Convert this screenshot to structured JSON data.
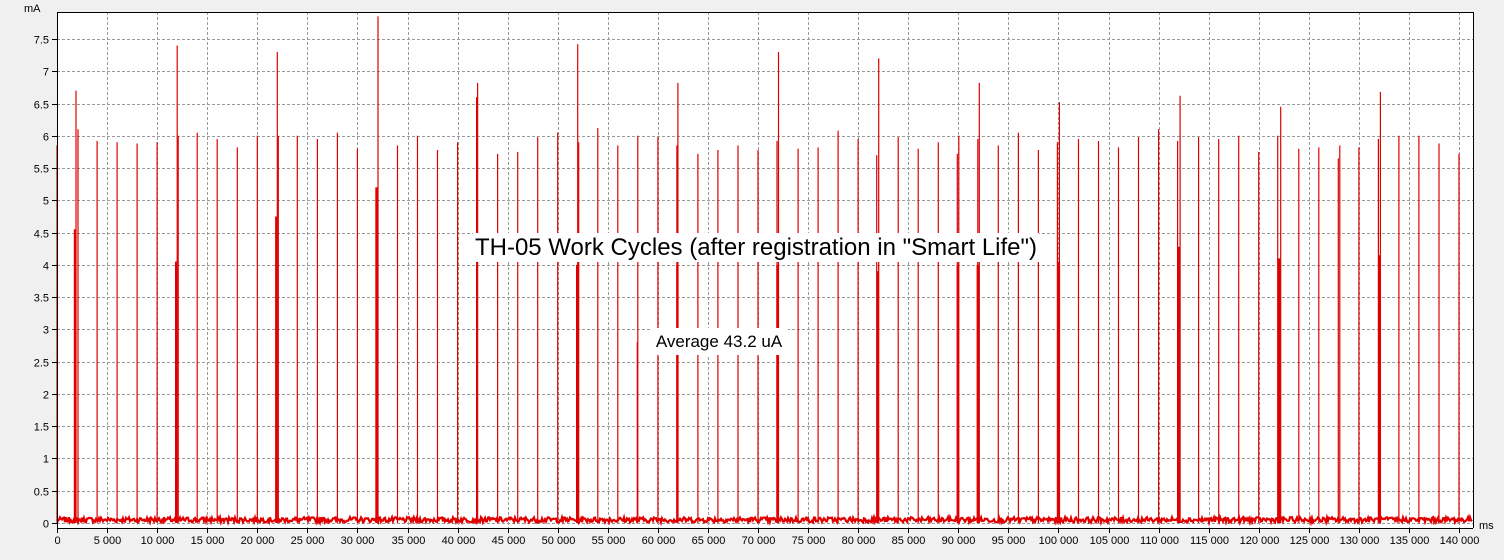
{
  "chart_data": {
    "type": "line",
    "title": "TH-05 Work Cycles (after registration in \"Smart Life\")",
    "annotation": "Average 43.2 uA",
    "xlabel": "ms",
    "ylabel": "mA",
    "xlim": [
      0,
      141000
    ],
    "ylim": [
      -0.05,
      7.85
    ],
    "grid": true,
    "line_color": "#e00000",
    "plot_background": "#ffffff",
    "x_ticks": [
      {
        "value": 0,
        "label": "0"
      },
      {
        "value": 5000,
        "label": "5 000"
      },
      {
        "value": 10000,
        "label": "10 000"
      },
      {
        "value": 15000,
        "label": "15 000"
      },
      {
        "value": 20000,
        "label": "20 000"
      },
      {
        "value": 25000,
        "label": "25 000"
      },
      {
        "value": 30000,
        "label": "30 000"
      },
      {
        "value": 35000,
        "label": "35 000"
      },
      {
        "value": 40000,
        "label": "40 000"
      },
      {
        "value": 45000,
        "label": "45 000"
      },
      {
        "value": 50000,
        "label": "50 000"
      },
      {
        "value": 55000,
        "label": "55 000"
      },
      {
        "value": 60000,
        "label": "60 000"
      },
      {
        "value": 65000,
        "label": "65 000"
      },
      {
        "value": 70000,
        "label": "70 000"
      },
      {
        "value": 75000,
        "label": "75 000"
      },
      {
        "value": 80000,
        "label": "80 000"
      },
      {
        "value": 85000,
        "label": "85 000"
      },
      {
        "value": 90000,
        "label": "90 000"
      },
      {
        "value": 95000,
        "label": "95 000"
      },
      {
        "value": 100000,
        "label": "100 000"
      },
      {
        "value": 105000,
        "label": "105 000"
      },
      {
        "value": 110000,
        "label": "110 000"
      },
      {
        "value": 115000,
        "label": "115 000"
      },
      {
        "value": 120000,
        "label": "120 000"
      },
      {
        "value": 125000,
        "label": "125 000"
      },
      {
        "value": 130000,
        "label": "130 000"
      },
      {
        "value": 135000,
        "label": "135 000"
      },
      {
        "value": 140000,
        "label": "140 000"
      }
    ],
    "y_ticks": [
      {
        "value": 0,
        "label": "0"
      },
      {
        "value": 0.5,
        "label": "0.5"
      },
      {
        "value": 1,
        "label": "1"
      },
      {
        "value": 1.5,
        "label": "1.5"
      },
      {
        "value": 2,
        "label": "2"
      },
      {
        "value": 2.5,
        "label": "2.5"
      },
      {
        "value": 3,
        "label": "3"
      },
      {
        "value": 3.5,
        "label": "3.5"
      },
      {
        "value": 4,
        "label": "4"
      },
      {
        "value": 4.5,
        "label": "4.5"
      },
      {
        "value": 5,
        "label": "5"
      },
      {
        "value": 5.5,
        "label": "5.5"
      },
      {
        "value": 6,
        "label": "6"
      },
      {
        "value": 6.5,
        "label": "6.5"
      },
      {
        "value": 7,
        "label": "7"
      },
      {
        "value": 7.5,
        "label": "7.5"
      }
    ],
    "baseline": 0.05,
    "spikes": [
      {
        "x": 0,
        "y": 5.85
      },
      {
        "x": 1800,
        "y": 4.55
      },
      {
        "x": 1900,
        "y": 6.7
      },
      {
        "x": 2100,
        "y": 6.1
      },
      {
        "x": 4000,
        "y": 5.92
      },
      {
        "x": 6000,
        "y": 5.9
      },
      {
        "x": 8000,
        "y": 5.88
      },
      {
        "x": 10000,
        "y": 5.9
      },
      {
        "x": 11900,
        "y": 4.05
      },
      {
        "x": 12000,
        "y": 7.4
      },
      {
        "x": 12100,
        "y": 6.0
      },
      {
        "x": 14000,
        "y": 6.05
      },
      {
        "x": 16000,
        "y": 5.95
      },
      {
        "x": 18000,
        "y": 5.82
      },
      {
        "x": 20000,
        "y": 6.0
      },
      {
        "x": 21900,
        "y": 4.75
      },
      {
        "x": 22000,
        "y": 7.3
      },
      {
        "x": 22100,
        "y": 6.0
      },
      {
        "x": 24000,
        "y": 6.0
      },
      {
        "x": 26000,
        "y": 5.95
      },
      {
        "x": 28000,
        "y": 6.05
      },
      {
        "x": 30000,
        "y": 5.8
      },
      {
        "x": 31900,
        "y": 5.2
      },
      {
        "x": 32050,
        "y": 7.85
      },
      {
        "x": 34000,
        "y": 5.85
      },
      {
        "x": 36000,
        "y": 6.0
      },
      {
        "x": 38000,
        "y": 5.78
      },
      {
        "x": 40000,
        "y": 5.9
      },
      {
        "x": 41900,
        "y": 6.6
      },
      {
        "x": 42000,
        "y": 6.82
      },
      {
        "x": 44000,
        "y": 5.72
      },
      {
        "x": 46000,
        "y": 5.75
      },
      {
        "x": 48000,
        "y": 5.98
      },
      {
        "x": 50000,
        "y": 6.05
      },
      {
        "x": 51900,
        "y": 3.85
      },
      {
        "x": 52000,
        "y": 7.42
      },
      {
        "x": 52100,
        "y": 5.9
      },
      {
        "x": 54000,
        "y": 6.12
      },
      {
        "x": 56000,
        "y": 5.85
      },
      {
        "x": 58000,
        "y": 6.0
      },
      {
        "x": 57950,
        "y": 2.8
      },
      {
        "x": 60000,
        "y": 5.98
      },
      {
        "x": 61900,
        "y": 5.85
      },
      {
        "x": 62000,
        "y": 6.82
      },
      {
        "x": 64000,
        "y": 5.72
      },
      {
        "x": 66000,
        "y": 5.78
      },
      {
        "x": 68000,
        "y": 5.85
      },
      {
        "x": 70000,
        "y": 5.78
      },
      {
        "x": 71900,
        "y": 5.92
      },
      {
        "x": 72050,
        "y": 7.3
      },
      {
        "x": 74000,
        "y": 5.8
      },
      {
        "x": 76000,
        "y": 5.82
      },
      {
        "x": 78000,
        "y": 6.08
      },
      {
        "x": 80000,
        "y": 5.95
      },
      {
        "x": 81850,
        "y": 5.7
      },
      {
        "x": 82050,
        "y": 7.2
      },
      {
        "x": 84000,
        "y": 5.98
      },
      {
        "x": 86000,
        "y": 5.8
      },
      {
        "x": 88000,
        "y": 5.9
      },
      {
        "x": 89900,
        "y": 5.72
      },
      {
        "x": 90050,
        "y": 6.0
      },
      {
        "x": 91950,
        "y": 5.95
      },
      {
        "x": 92100,
        "y": 6.82
      },
      {
        "x": 94000,
        "y": 5.85
      },
      {
        "x": 96000,
        "y": 6.05
      },
      {
        "x": 98000,
        "y": 5.78
      },
      {
        "x": 99900,
        "y": 5.9
      },
      {
        "x": 100100,
        "y": 6.52
      },
      {
        "x": 102000,
        "y": 5.95
      },
      {
        "x": 104000,
        "y": 5.92
      },
      {
        "x": 106000,
        "y": 5.82
      },
      {
        "x": 108000,
        "y": 5.98
      },
      {
        "x": 110000,
        "y": 6.1
      },
      {
        "x": 111900,
        "y": 5.92
      },
      {
        "x": 112150,
        "y": 6.62
      },
      {
        "x": 114000,
        "y": 5.98
      },
      {
        "x": 116000,
        "y": 5.95
      },
      {
        "x": 118000,
        "y": 6.0
      },
      {
        "x": 120000,
        "y": 5.75
      },
      {
        "x": 121900,
        "y": 6.0
      },
      {
        "x": 122200,
        "y": 6.45
      },
      {
        "x": 124000,
        "y": 5.8
      },
      {
        "x": 126000,
        "y": 5.82
      },
      {
        "x": 127950,
        "y": 5.65
      },
      {
        "x": 128100,
        "y": 5.85
      },
      {
        "x": 130000,
        "y": 5.82
      },
      {
        "x": 131950,
        "y": 5.95
      },
      {
        "x": 132150,
        "y": 6.68
      },
      {
        "x": 134000,
        "y": 6.0
      },
      {
        "x": 136000,
        "y": 6.0
      },
      {
        "x": 138000,
        "y": 5.88
      },
      {
        "x": 140000,
        "y": 5.72
      }
    ],
    "mid_spikes": [
      {
        "x": 1800,
        "y": 4.55
      },
      {
        "x": 11900,
        "y": 4.05
      },
      {
        "x": 21900,
        "y": 4.75
      },
      {
        "x": 31900,
        "y": 5.2
      },
      {
        "x": 51950,
        "y": 4.0
      },
      {
        "x": 61950,
        "y": 4.0
      },
      {
        "x": 71950,
        "y": 4.0
      },
      {
        "x": 81950,
        "y": 3.9
      },
      {
        "x": 89950,
        "y": 4.0
      },
      {
        "x": 91950,
        "y": 4.0
      },
      {
        "x": 100050,
        "y": 4.05
      },
      {
        "x": 112050,
        "y": 4.28
      },
      {
        "x": 122050,
        "y": 4.1
      },
      {
        "x": 132050,
        "y": 4.15
      }
    ]
  }
}
